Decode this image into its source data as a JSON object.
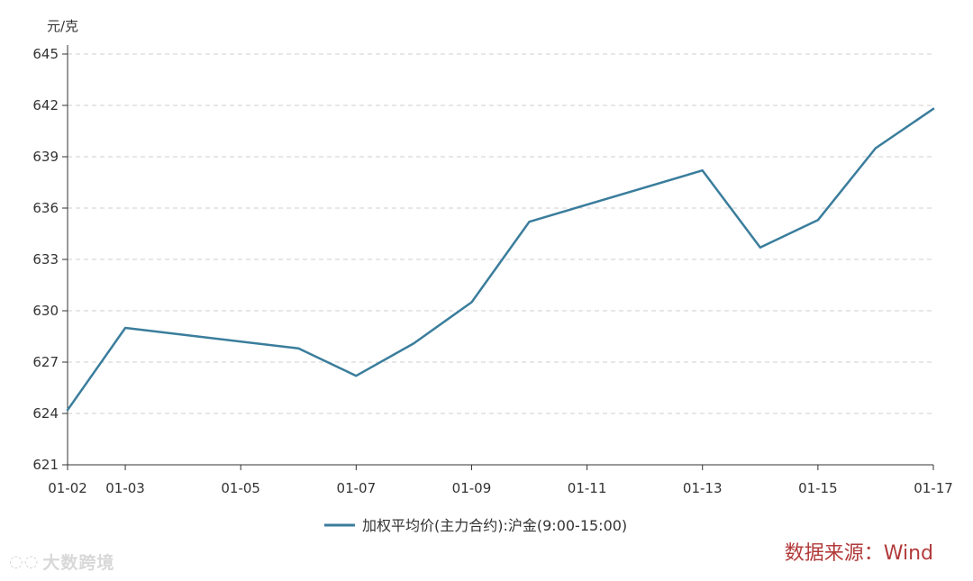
{
  "chart_data": {
    "type": "line",
    "ylabel": "元/克",
    "ylim": [
      621,
      645
    ],
    "yticks": [
      621,
      624,
      627,
      630,
      633,
      636,
      639,
      642,
      645
    ],
    "x": [
      "01-02",
      "01-03",
      "01-04",
      "01-05",
      "01-06",
      "01-07",
      "01-08",
      "01-09",
      "01-10",
      "01-11",
      "01-12",
      "01-13",
      "01-14",
      "01-15",
      "01-16",
      "01-17"
    ],
    "xtick_labels": [
      "01-02",
      "01-03",
      "01-05",
      "01-07",
      "01-09",
      "01-11",
      "01-13",
      "01-15",
      "01-17"
    ],
    "series": [
      {
        "name": "加权平均价(主力合约):沪金(9:00-15:00)",
        "color": "#3a7d9c",
        "values": [
          624.2,
          629.0,
          null,
          null,
          627.8,
          626.2,
          628.1,
          630.5,
          635.2,
          null,
          null,
          638.2,
          633.7,
          635.3,
          639.5,
          641.8
        ]
      }
    ],
    "grid": "horizontal-dashed",
    "legend_position": "bottom-center"
  },
  "source_text": "数据来源：Wind",
  "watermark_text": "大数跨境"
}
